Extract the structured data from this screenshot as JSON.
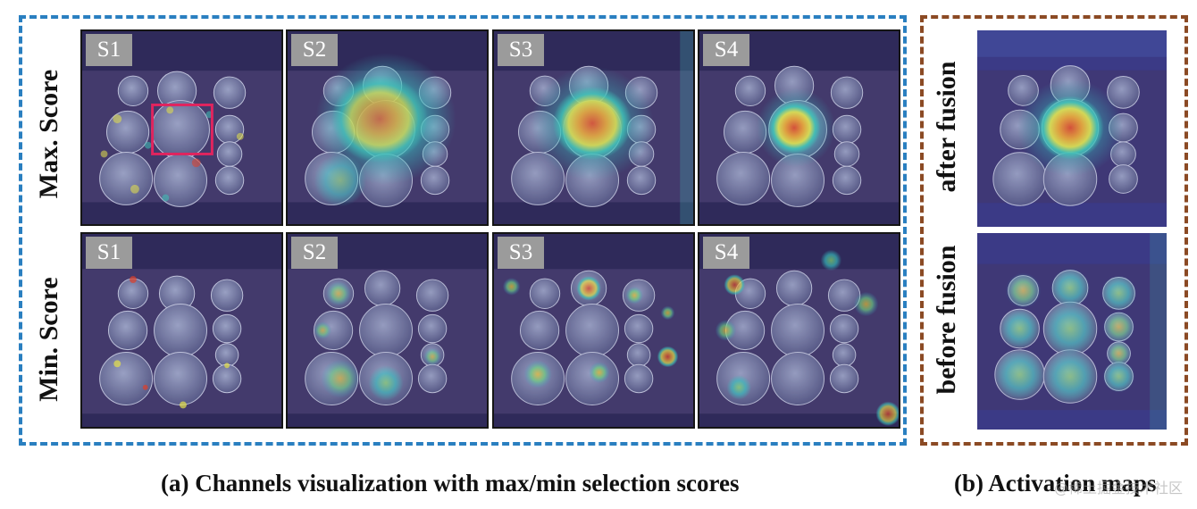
{
  "panel_a": {
    "row_labels": [
      "Max. Score",
      "Min. Score"
    ],
    "rows": [
      {
        "label": "Max. Score",
        "tiles": [
          "S1",
          "S2",
          "S3",
          "S4"
        ]
      },
      {
        "label": "Min. Score",
        "tiles": [
          "S1",
          "S2",
          "S3",
          "S4"
        ]
      }
    ],
    "caption": "(a) Channels visualization with max/min selection scores",
    "border_color": "#2a7fc0",
    "highlight_color": "#e0245e"
  },
  "panel_b": {
    "row_labels": [
      "after fusion",
      "before fusion"
    ],
    "caption": "(b) Activation maps",
    "border_color": "#8b4a24"
  },
  "watermark": "@稀土掘金技术社区"
}
